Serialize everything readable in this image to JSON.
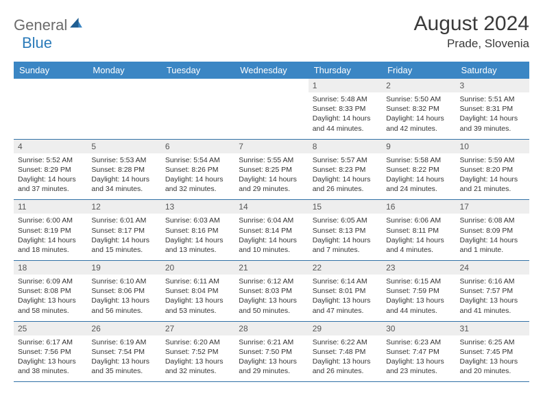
{
  "logo": {
    "part1": "General",
    "part2": "Blue"
  },
  "title": {
    "month": "August 2024",
    "location": "Prade, Slovenia"
  },
  "colors": {
    "header_bg": "#3b86c4",
    "header_text": "#ffffff",
    "daynum_bg": "#eeeeee",
    "row_border": "#2f6fa5",
    "logo_gray": "#6b6b6b",
    "logo_blue": "#2a7ab9"
  },
  "day_names": [
    "Sunday",
    "Monday",
    "Tuesday",
    "Wednesday",
    "Thursday",
    "Friday",
    "Saturday"
  ],
  "weeks": [
    [
      {
        "n": "",
        "sr": "",
        "ss": "",
        "dl": ""
      },
      {
        "n": "",
        "sr": "",
        "ss": "",
        "dl": ""
      },
      {
        "n": "",
        "sr": "",
        "ss": "",
        "dl": ""
      },
      {
        "n": "",
        "sr": "",
        "ss": "",
        "dl": ""
      },
      {
        "n": "1",
        "sr": "Sunrise: 5:48 AM",
        "ss": "Sunset: 8:33 PM",
        "dl": "Daylight: 14 hours and 44 minutes."
      },
      {
        "n": "2",
        "sr": "Sunrise: 5:50 AM",
        "ss": "Sunset: 8:32 PM",
        "dl": "Daylight: 14 hours and 42 minutes."
      },
      {
        "n": "3",
        "sr": "Sunrise: 5:51 AM",
        "ss": "Sunset: 8:31 PM",
        "dl": "Daylight: 14 hours and 39 minutes."
      }
    ],
    [
      {
        "n": "4",
        "sr": "Sunrise: 5:52 AM",
        "ss": "Sunset: 8:29 PM",
        "dl": "Daylight: 14 hours and 37 minutes."
      },
      {
        "n": "5",
        "sr": "Sunrise: 5:53 AM",
        "ss": "Sunset: 8:28 PM",
        "dl": "Daylight: 14 hours and 34 minutes."
      },
      {
        "n": "6",
        "sr": "Sunrise: 5:54 AM",
        "ss": "Sunset: 8:26 PM",
        "dl": "Daylight: 14 hours and 32 minutes."
      },
      {
        "n": "7",
        "sr": "Sunrise: 5:55 AM",
        "ss": "Sunset: 8:25 PM",
        "dl": "Daylight: 14 hours and 29 minutes."
      },
      {
        "n": "8",
        "sr": "Sunrise: 5:57 AM",
        "ss": "Sunset: 8:23 PM",
        "dl": "Daylight: 14 hours and 26 minutes."
      },
      {
        "n": "9",
        "sr": "Sunrise: 5:58 AM",
        "ss": "Sunset: 8:22 PM",
        "dl": "Daylight: 14 hours and 24 minutes."
      },
      {
        "n": "10",
        "sr": "Sunrise: 5:59 AM",
        "ss": "Sunset: 8:20 PM",
        "dl": "Daylight: 14 hours and 21 minutes."
      }
    ],
    [
      {
        "n": "11",
        "sr": "Sunrise: 6:00 AM",
        "ss": "Sunset: 8:19 PM",
        "dl": "Daylight: 14 hours and 18 minutes."
      },
      {
        "n": "12",
        "sr": "Sunrise: 6:01 AM",
        "ss": "Sunset: 8:17 PM",
        "dl": "Daylight: 14 hours and 15 minutes."
      },
      {
        "n": "13",
        "sr": "Sunrise: 6:03 AM",
        "ss": "Sunset: 8:16 PM",
        "dl": "Daylight: 14 hours and 13 minutes."
      },
      {
        "n": "14",
        "sr": "Sunrise: 6:04 AM",
        "ss": "Sunset: 8:14 PM",
        "dl": "Daylight: 14 hours and 10 minutes."
      },
      {
        "n": "15",
        "sr": "Sunrise: 6:05 AM",
        "ss": "Sunset: 8:13 PM",
        "dl": "Daylight: 14 hours and 7 minutes."
      },
      {
        "n": "16",
        "sr": "Sunrise: 6:06 AM",
        "ss": "Sunset: 8:11 PM",
        "dl": "Daylight: 14 hours and 4 minutes."
      },
      {
        "n": "17",
        "sr": "Sunrise: 6:08 AM",
        "ss": "Sunset: 8:09 PM",
        "dl": "Daylight: 14 hours and 1 minute."
      }
    ],
    [
      {
        "n": "18",
        "sr": "Sunrise: 6:09 AM",
        "ss": "Sunset: 8:08 PM",
        "dl": "Daylight: 13 hours and 58 minutes."
      },
      {
        "n": "19",
        "sr": "Sunrise: 6:10 AM",
        "ss": "Sunset: 8:06 PM",
        "dl": "Daylight: 13 hours and 56 minutes."
      },
      {
        "n": "20",
        "sr": "Sunrise: 6:11 AM",
        "ss": "Sunset: 8:04 PM",
        "dl": "Daylight: 13 hours and 53 minutes."
      },
      {
        "n": "21",
        "sr": "Sunrise: 6:12 AM",
        "ss": "Sunset: 8:03 PM",
        "dl": "Daylight: 13 hours and 50 minutes."
      },
      {
        "n": "22",
        "sr": "Sunrise: 6:14 AM",
        "ss": "Sunset: 8:01 PM",
        "dl": "Daylight: 13 hours and 47 minutes."
      },
      {
        "n": "23",
        "sr": "Sunrise: 6:15 AM",
        "ss": "Sunset: 7:59 PM",
        "dl": "Daylight: 13 hours and 44 minutes."
      },
      {
        "n": "24",
        "sr": "Sunrise: 6:16 AM",
        "ss": "Sunset: 7:57 PM",
        "dl": "Daylight: 13 hours and 41 minutes."
      }
    ],
    [
      {
        "n": "25",
        "sr": "Sunrise: 6:17 AM",
        "ss": "Sunset: 7:56 PM",
        "dl": "Daylight: 13 hours and 38 minutes."
      },
      {
        "n": "26",
        "sr": "Sunrise: 6:19 AM",
        "ss": "Sunset: 7:54 PM",
        "dl": "Daylight: 13 hours and 35 minutes."
      },
      {
        "n": "27",
        "sr": "Sunrise: 6:20 AM",
        "ss": "Sunset: 7:52 PM",
        "dl": "Daylight: 13 hours and 32 minutes."
      },
      {
        "n": "28",
        "sr": "Sunrise: 6:21 AM",
        "ss": "Sunset: 7:50 PM",
        "dl": "Daylight: 13 hours and 29 minutes."
      },
      {
        "n": "29",
        "sr": "Sunrise: 6:22 AM",
        "ss": "Sunset: 7:48 PM",
        "dl": "Daylight: 13 hours and 26 minutes."
      },
      {
        "n": "30",
        "sr": "Sunrise: 6:23 AM",
        "ss": "Sunset: 7:47 PM",
        "dl": "Daylight: 13 hours and 23 minutes."
      },
      {
        "n": "31",
        "sr": "Sunrise: 6:25 AM",
        "ss": "Sunset: 7:45 PM",
        "dl": "Daylight: 13 hours and 20 minutes."
      }
    ]
  ]
}
